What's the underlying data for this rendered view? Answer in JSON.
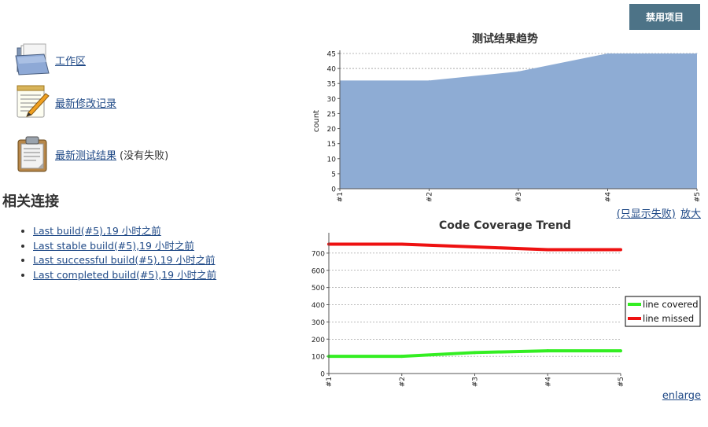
{
  "header": {
    "disable_button": "禁用项目"
  },
  "tasks": [
    {
      "label": "工作区",
      "icon": "folder-icon"
    },
    {
      "label": "最新修改记录",
      "icon": "notepad-icon"
    },
    {
      "label": "最新测试结果",
      "note": "(没有失败)",
      "icon": "clipboard-icon"
    }
  ],
  "related": {
    "title": "相关连接",
    "links": [
      "Last build(#5),19 小时之前",
      "Last stable build(#5),19 小时之前",
      "Last successful build(#5),19 小时之前",
      "Last completed build(#5),19 小时之前"
    ]
  },
  "test_chart_links": {
    "only_failures": "(只显示失败)",
    "enlarge": "放大"
  },
  "coverage_chart_links": {
    "enlarge": "enlarge"
  },
  "chart_data": [
    {
      "type": "area",
      "title": "测试结果趋势",
      "ylabel": "count",
      "xlabel": "",
      "categories": [
        "#1",
        "#2",
        "#3",
        "#4",
        "#5"
      ],
      "series": [
        {
          "values": [
            36,
            36,
            39,
            45,
            45
          ],
          "color": "#8eacd4"
        }
      ],
      "ylim": [
        0,
        45
      ],
      "yticks": [
        0,
        5,
        10,
        15,
        20,
        25,
        30,
        35,
        40,
        45
      ],
      "grid": true
    },
    {
      "type": "line",
      "title": "Code Coverage Trend",
      "ylabel": "",
      "xlabel": "",
      "categories": [
        "#1",
        "#2",
        "#3",
        "#4",
        "#5"
      ],
      "series": [
        {
          "name": "line covered",
          "values": [
            100,
            100,
            122,
            132,
            132
          ],
          "color": "#33ee22"
        },
        {
          "name": "line missed",
          "values": [
            752,
            752,
            736,
            720,
            720
          ],
          "color": "#ee1111"
        }
      ],
      "ylim": [
        0,
        800
      ],
      "yticks": [
        0,
        100,
        200,
        300,
        400,
        500,
        600,
        700
      ],
      "grid": true,
      "legend": "right"
    }
  ]
}
